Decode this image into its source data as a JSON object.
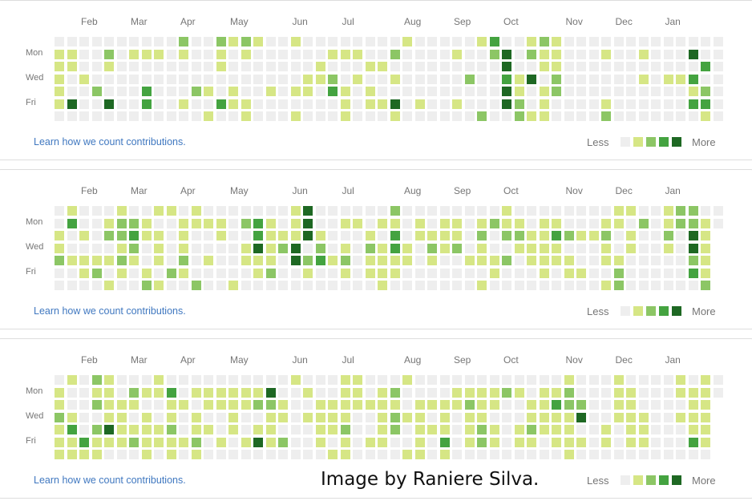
{
  "chart_data": [
    {
      "type": "heatmap",
      "title": "",
      "levels": [
        "none",
        "low",
        "medium",
        "high",
        "highest"
      ],
      "colors": [
        "#eeeeee",
        "#d6e685",
        "#8cc665",
        "#44a340",
        "#1e6823"
      ],
      "month_labels": [
        {
          "label": "Feb",
          "week": 2
        },
        {
          "label": "Mar",
          "week": 6
        },
        {
          "label": "Apr",
          "week": 10
        },
        {
          "label": "May",
          "week": 14
        },
        {
          "label": "Jun",
          "week": 19
        },
        {
          "label": "Jul",
          "week": 23
        },
        {
          "label": "Aug",
          "week": 28
        },
        {
          "label": "Sep",
          "week": 32
        },
        {
          "label": "Oct",
          "week": 36
        },
        {
          "label": "Nov",
          "week": 41
        },
        {
          "label": "Dec",
          "week": 45
        },
        {
          "label": "Jan",
          "week": 49
        }
      ],
      "day_labels": [
        {
          "label": "Mon",
          "row": 1
        },
        {
          "label": "Wed",
          "row": 3
        },
        {
          "label": "Fri",
          "row": 5
        }
      ],
      "rows": [
        "000000000020021210010000000010000013001210000000000000",
        "110020111010010100000011100200001002402110001001000400",
        "110010000000010000000100011000000000400110000000000030-",
        "101000000000000000001120100100000200314020000001011300",
        "100200030002101001011031010000000000410120000000000120",
        "140040030010031100000001011401001000420100001000000330",
        "000000000000100100010001000100000020021100002000000010"
      ]
    },
    {
      "type": "heatmap",
      "title": "",
      "levels": [
        "none",
        "low",
        "medium",
        "high",
        "highest"
      ],
      "colors": [
        "#eeeeee",
        "#d6e685",
        "#8cc665",
        "#44a340",
        "#1e6823"
      ],
      "month_labels": [
        {
          "label": "Feb",
          "week": 2
        },
        {
          "label": "Mar",
          "week": 6
        },
        {
          "label": "Apr",
          "week": 10
        },
        {
          "label": "May",
          "week": 14
        },
        {
          "label": "Jun",
          "week": 19
        },
        {
          "label": "Jul",
          "week": 23
        },
        {
          "label": "Aug",
          "week": 28
        },
        {
          "label": "Sep",
          "week": 32
        },
        {
          "label": "Oct",
          "week": 36
        },
        {
          "label": "Nov",
          "week": 41
        },
        {
          "label": "Dec",
          "week": 45
        },
        {
          "label": "Jan",
          "week": 49
        }
      ],
      "day_labels": [
        {
          "label": "Mon",
          "row": 1
        },
        {
          "label": "Wed",
          "row": 3
        },
        {
          "label": "Fri",
          "row": 5
        }
      ],
      "rows": [
        "010001001101000000014000000200000000100000000110012200",
        "030012210011110231014001101101011012110110001102012210",
        "10102231101001003111410001030111102022113211201002041-",
        "10000120101000014124020102131021201001111000101001041-",
        "21111210102010011104231201111010011120111100110000021-",
        "00120101021000001200100101110000000100010110020000031-",
        "00001002100200100000000000100000001000000000120000002-"
      ]
    },
    {
      "type": "heatmap",
      "title": "",
      "levels": [
        "none",
        "low",
        "medium",
        "high",
        "highest"
      ],
      "colors": [
        "#eeeeee",
        "#d6e685",
        "#8cc665",
        "#44a340",
        "#1e6823"
      ],
      "month_labels": [
        {
          "label": "Feb",
          "week": 2
        },
        {
          "label": "Mar",
          "week": 6
        },
        {
          "label": "Apr",
          "week": 10
        },
        {
          "label": "May",
          "week": 14
        },
        {
          "label": "Jun",
          "week": 19
        },
        {
          "label": "Jul",
          "week": 23
        },
        {
          "label": "Aug",
          "week": 28
        },
        {
          "label": "Sep",
          "week": 32
        },
        {
          "label": "Oct",
          "week": 36
        },
        {
          "label": "Nov",
          "week": 41
        },
        {
          "label": "Dec",
          "week": 45
        },
        {
          "label": "Jan",
          "week": 49
        }
      ],
      "day_labels": [
        {
          "label": "Mon",
          "row": 1
        },
        {
          "label": "Wed",
          "row": 3
        },
        {
          "label": "Fri",
          "row": 5
        }
      ],
      "rows": [
        "010210001000000000010001100010000000000001000100001010",
        "100110211301111114001001101200001111210112000110001110",
        "10021110011011112210011111110111121100113220011000011-",
        "21001101010100100110111100121101011000111140011100111-",
        "13024111120110101100011200120111012101211100101100011-",
        "11311121111201014120010101100103012101101110101100031-",
        "11110001010100000000001100001101000000000100000000000-"
      ]
    }
  ],
  "panels": [
    {
      "link": "Learn how we count contributions.",
      "legend_less": "Less",
      "legend_more": "More"
    },
    {
      "link": "Learn how we count contributions.",
      "legend_less": "Less",
      "legend_more": "More"
    },
    {
      "link": "Learn how we count contributions.",
      "legend_less": "Less",
      "legend_more": "More"
    }
  ],
  "watermark": "Image by Raniere Silva."
}
